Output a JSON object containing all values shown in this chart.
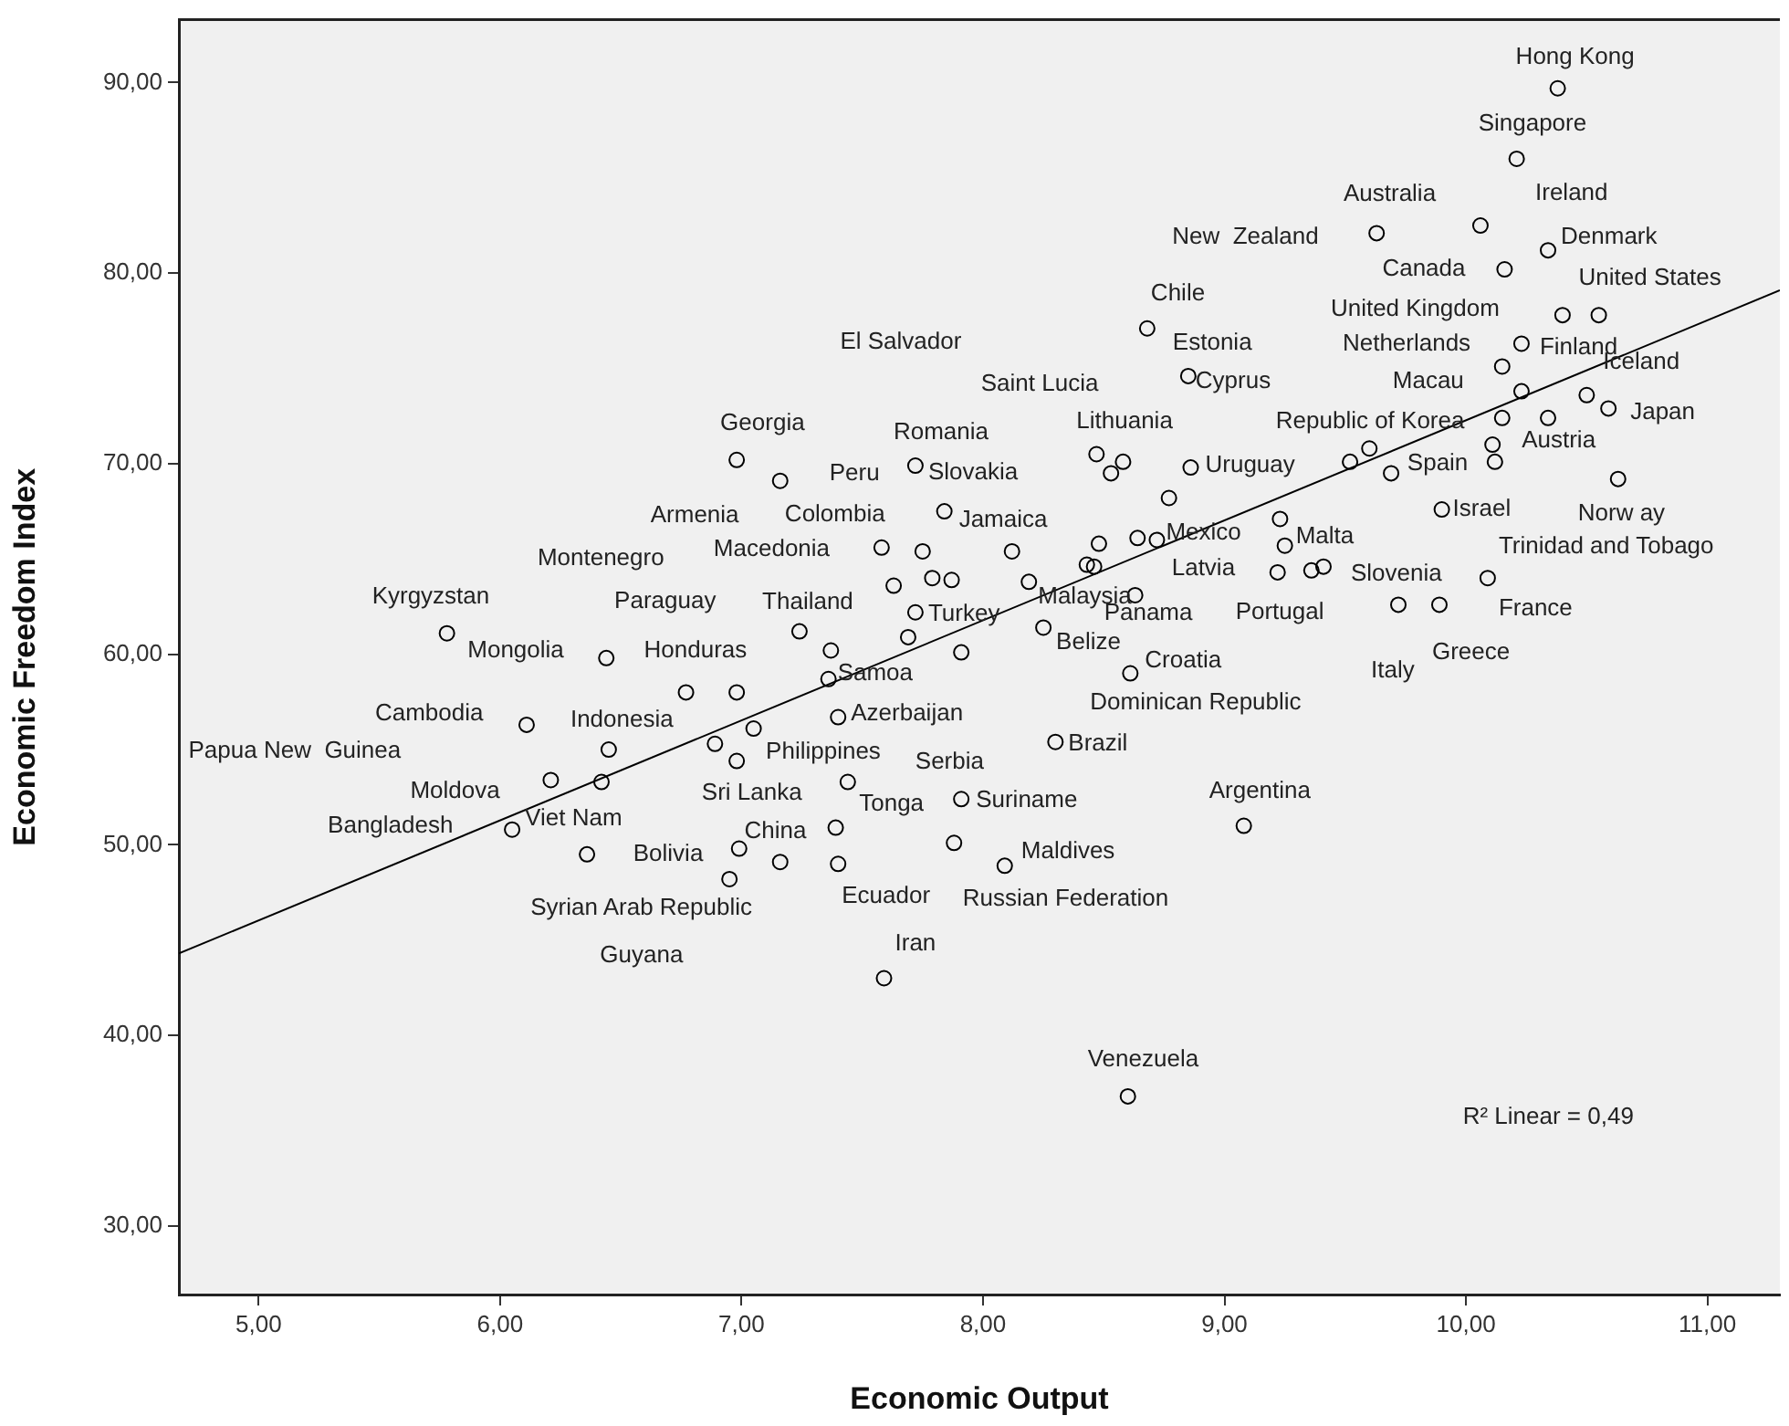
{
  "chart_data": {
    "type": "scatter",
    "xlabel": "Economic Output",
    "ylabel": "Economic Freedom Index",
    "xlim": [
      4.67,
      11.3
    ],
    "ylim": [
      26.4,
      93.3
    ],
    "xticks": [
      {
        "value": 5,
        "label": "5,00"
      },
      {
        "value": 6,
        "label": "6,00"
      },
      {
        "value": 7,
        "label": "7,00"
      },
      {
        "value": 8,
        "label": "8,00"
      },
      {
        "value": 9,
        "label": "9,00"
      },
      {
        "value": 10,
        "label": "10,00"
      },
      {
        "value": 11,
        "label": "11,00"
      }
    ],
    "yticks": [
      {
        "value": 30,
        "label": "30,00"
      },
      {
        "value": 40,
        "label": "40,00"
      },
      {
        "value": 50,
        "label": "50,00"
      },
      {
        "value": 60,
        "label": "60,00"
      },
      {
        "value": 70,
        "label": "70,00"
      },
      {
        "value": 80,
        "label": "80,00"
      },
      {
        "value": 90,
        "label": "90,00"
      }
    ],
    "grid": false,
    "legend": false,
    "marker": "circle",
    "series": [
      {
        "type": "scatter",
        "color": "#000000",
        "x": [
          10.38,
          10.21,
          10.06,
          9.63,
          10.16,
          10.34,
          10.4,
          10.55,
          10.23,
          10.15,
          10.23,
          10.5,
          10.59,
          10.15,
          10.34,
          10.11,
          10.12,
          9.6,
          9.52,
          9.69,
          10.63,
          9.9,
          9.23,
          9.25,
          9.22,
          9.36,
          9.41,
          10.09,
          9.72,
          9.89,
          8.68,
          8.85,
          8.47,
          8.58,
          8.53,
          8.86,
          8.77,
          8.64,
          8.72,
          8.48,
          8.43,
          8.46,
          6.98,
          7.16,
          7.72,
          7.84,
          7.58,
          7.75,
          7.79,
          7.87,
          8.12,
          7.63,
          7.72,
          8.19,
          8.63,
          8.25,
          7.24,
          7.37,
          7.69,
          7.91,
          8.61,
          6.44,
          5.78,
          6.77,
          6.11,
          6.45,
          6.21,
          6.42,
          6.05,
          6.36,
          6.89,
          7.36,
          6.98,
          7.4,
          7.05,
          6.98,
          7.44,
          7.39,
          6.99,
          7.16,
          7.4,
          6.95,
          7.88,
          7.91,
          8.09,
          8.3,
          9.08,
          7.59,
          8.6
        ],
        "values": [
          89.7,
          86.0,
          82.5,
          82.1,
          80.2,
          81.2,
          77.8,
          77.8,
          76.3,
          75.1,
          73.8,
          73.6,
          72.9,
          72.4,
          72.4,
          71.0,
          70.1,
          70.8,
          70.1,
          69.5,
          69.2,
          67.6,
          67.1,
          65.7,
          64.3,
          64.4,
          64.6,
          64.0,
          62.6,
          62.6,
          77.1,
          74.6,
          70.5,
          70.1,
          69.5,
          69.8,
          68.2,
          66.1,
          66.0,
          65.8,
          64.7,
          64.6,
          70.2,
          69.1,
          69.9,
          67.5,
          65.6,
          65.4,
          64.0,
          63.9,
          65.4,
          63.6,
          62.2,
          63.8,
          63.1,
          61.4,
          61.2,
          60.2,
          60.9,
          60.1,
          59.0,
          59.8,
          61.1,
          58.0,
          56.3,
          55.0,
          53.4,
          53.3,
          50.8,
          49.5,
          55.3,
          58.7,
          58.0,
          56.7,
          56.1,
          54.4,
          53.3,
          50.9,
          49.8,
          49.1,
          49.0,
          48.2,
          50.1,
          52.4,
          48.9,
          55.4,
          51.0,
          43.0,
          36.8
        ]
      },
      {
        "type": "line",
        "color": "#000000",
        "marker": "none",
        "line_style": "solid",
        "x": [
          4.67,
          11.3
        ],
        "values": [
          44.3,
          79.1
        ]
      }
    ],
    "annotations": [
      {
        "text": "Hong Kong",
        "x": 10.38,
        "y": 89.7
      },
      {
        "text": "Singapore",
        "x": 10.21,
        "y": 86.0
      },
      {
        "text": "Australia",
        "x": 10.06,
        "y": 82.5
      },
      {
        "text": "Ireland",
        "x": 10.34,
        "y": 81.2
      },
      {
        "text": "New  Zealand",
        "x": 9.63,
        "y": 82.1
      },
      {
        "text": "Denmark",
        "x": 10.34,
        "y": 81.2
      },
      {
        "text": "Canada",
        "x": 10.16,
        "y": 80.2
      },
      {
        "text": "United States",
        "x": 10.55,
        "y": 77.8
      },
      {
        "text": "Chile",
        "x": 8.68,
        "y": 77.1
      },
      {
        "text": "United Kingdom",
        "x": 10.4,
        "y": 77.8
      },
      {
        "text": "Estonia",
        "x": 8.68,
        "y": 77.1
      },
      {
        "text": "Netherlands",
        "x": 10.23,
        "y": 76.3
      },
      {
        "text": "Finland",
        "x": 10.23,
        "y": 76.3
      },
      {
        "text": "Iceland",
        "x": 10.5,
        "y": 73.6
      },
      {
        "text": "Cyprus",
        "x": 8.85,
        "y": 74.6
      },
      {
        "text": "Macau",
        "x": 10.15,
        "y": 75.1
      },
      {
        "text": "Georgia",
        "x": 6.98,
        "y": 70.2
      },
      {
        "text": "Lithuania",
        "x": 8.47,
        "y": 70.5
      },
      {
        "text": "Republic of Korea",
        "x": 10.15,
        "y": 72.4
      },
      {
        "text": "Japan",
        "x": 10.59,
        "y": 72.9
      },
      {
        "text": "Romania",
        "x": 7.72,
        "y": 69.9
      },
      {
        "text": "Austria",
        "x": 10.11,
        "y": 71.0
      },
      {
        "text": "Peru",
        "x": 7.16,
        "y": 69.1
      },
      {
        "text": "Slovakia",
        "x": 7.72,
        "y": 69.9
      },
      {
        "text": "Uruguay",
        "x": 8.86,
        "y": 69.8
      },
      {
        "text": "Spain",
        "x": 10.12,
        "y": 70.1
      },
      {
        "text": "Norw ay",
        "x": 10.63,
        "y": 69.2
      },
      {
        "text": "Israel",
        "x": 9.9,
        "y": 67.6
      },
      {
        "text": "Armenia",
        "x": 7.16,
        "y": 69.1
      },
      {
        "text": "Colombia",
        "x": 7.58,
        "y": 65.6
      },
      {
        "text": "Jamaica",
        "x": 7.84,
        "y": 67.5
      },
      {
        "text": "Macedonia",
        "x": 7.58,
        "y": 65.6
      },
      {
        "text": "Mexico",
        "x": 8.72,
        "y": 66.0
      },
      {
        "text": "Malta",
        "x": 9.25,
        "y": 65.7
      },
      {
        "text": "Trinidad and Tobago",
        "x": 10.09,
        "y": 64.0
      },
      {
        "text": "Latvia",
        "x": 9.22,
        "y": 64.3
      },
      {
        "text": "Slovenia",
        "x": 9.41,
        "y": 64.6
      },
      {
        "text": "Kyrgyzstan",
        "x": 5.78,
        "y": 61.1
      },
      {
        "text": "Thailand",
        "x": 7.63,
        "y": 63.6
      },
      {
        "text": "Turkey",
        "x": 7.72,
        "y": 62.2
      },
      {
        "text": "Malaysia",
        "x": 8.19,
        "y": 63.8
      },
      {
        "text": "Panama",
        "x": 8.63,
        "y": 63.1
      },
      {
        "text": "France",
        "x": 10.09,
        "y": 64.0
      },
      {
        "text": "Mongolia",
        "x": 6.44,
        "y": 59.8
      },
      {
        "text": "Honduras",
        "x": 6.77,
        "y": 58.0
      },
      {
        "text": "Belize",
        "x": 8.25,
        "y": 61.4
      },
      {
        "text": "Samoa",
        "x": 7.36,
        "y": 58.7
      },
      {
        "text": "Croatia",
        "x": 8.61,
        "y": 59.0
      },
      {
        "text": "Greece",
        "x": 9.89,
        "y": 62.6
      },
      {
        "text": "Italy",
        "x": 9.72,
        "y": 62.6
      },
      {
        "text": "Cambodia",
        "x": 6.11,
        "y": 56.3
      },
      {
        "text": "Indonesia",
        "x": 6.45,
        "y": 55.0
      },
      {
        "text": "Azerbaijan",
        "x": 7.4,
        "y": 56.7
      },
      {
        "text": "Dominican Republic",
        "x": 8.61,
        "y": 59.0
      },
      {
        "text": "Philippines",
        "x": 6.98,
        "y": 54.4
      },
      {
        "text": "Serbia",
        "x": 7.44,
        "y": 53.3
      },
      {
        "text": "Brazil",
        "x": 8.3,
        "y": 55.4
      },
      {
        "text": "Moldova",
        "x": 6.21,
        "y": 53.4
      },
      {
        "text": "Sri Lanka",
        "x": 7.44,
        "y": 53.3
      },
      {
        "text": "Tonga",
        "x": 7.88,
        "y": 50.1
      },
      {
        "text": "Suriname",
        "x": 7.91,
        "y": 52.4
      },
      {
        "text": "Argentina",
        "x": 9.08,
        "y": 51.0
      },
      {
        "text": "Bangladesh",
        "x": 6.05,
        "y": 50.8
      },
      {
        "text": "Viet Nam",
        "x": 6.05,
        "y": 50.8
      },
      {
        "text": "China",
        "x": 7.39,
        "y": 50.9
      },
      {
        "text": "Bolivia",
        "x": 6.99,
        "y": 49.8
      },
      {
        "text": "Maldives",
        "x": 8.09,
        "y": 48.9
      },
      {
        "text": "Syrian Arab Republic",
        "x": 6.95,
        "y": 48.2
      },
      {
        "text": "Ecuador",
        "x": 7.4,
        "y": 49.0
      },
      {
        "text": "Russian Federation",
        "x": 8.09,
        "y": 48.9
      },
      {
        "text": "Iran",
        "x": 7.59,
        "y": 43.0
      },
      {
        "text": "Venezuela",
        "x": 8.6,
        "y": 36.8
      },
      "El Salvador",
      "Saint Lucia",
      "Guyana",
      "R² Linear = 0,49",
      "Montenegro",
      "Paraguay",
      "Portugal",
      "Papua New  Guinea"
    ]
  }
}
